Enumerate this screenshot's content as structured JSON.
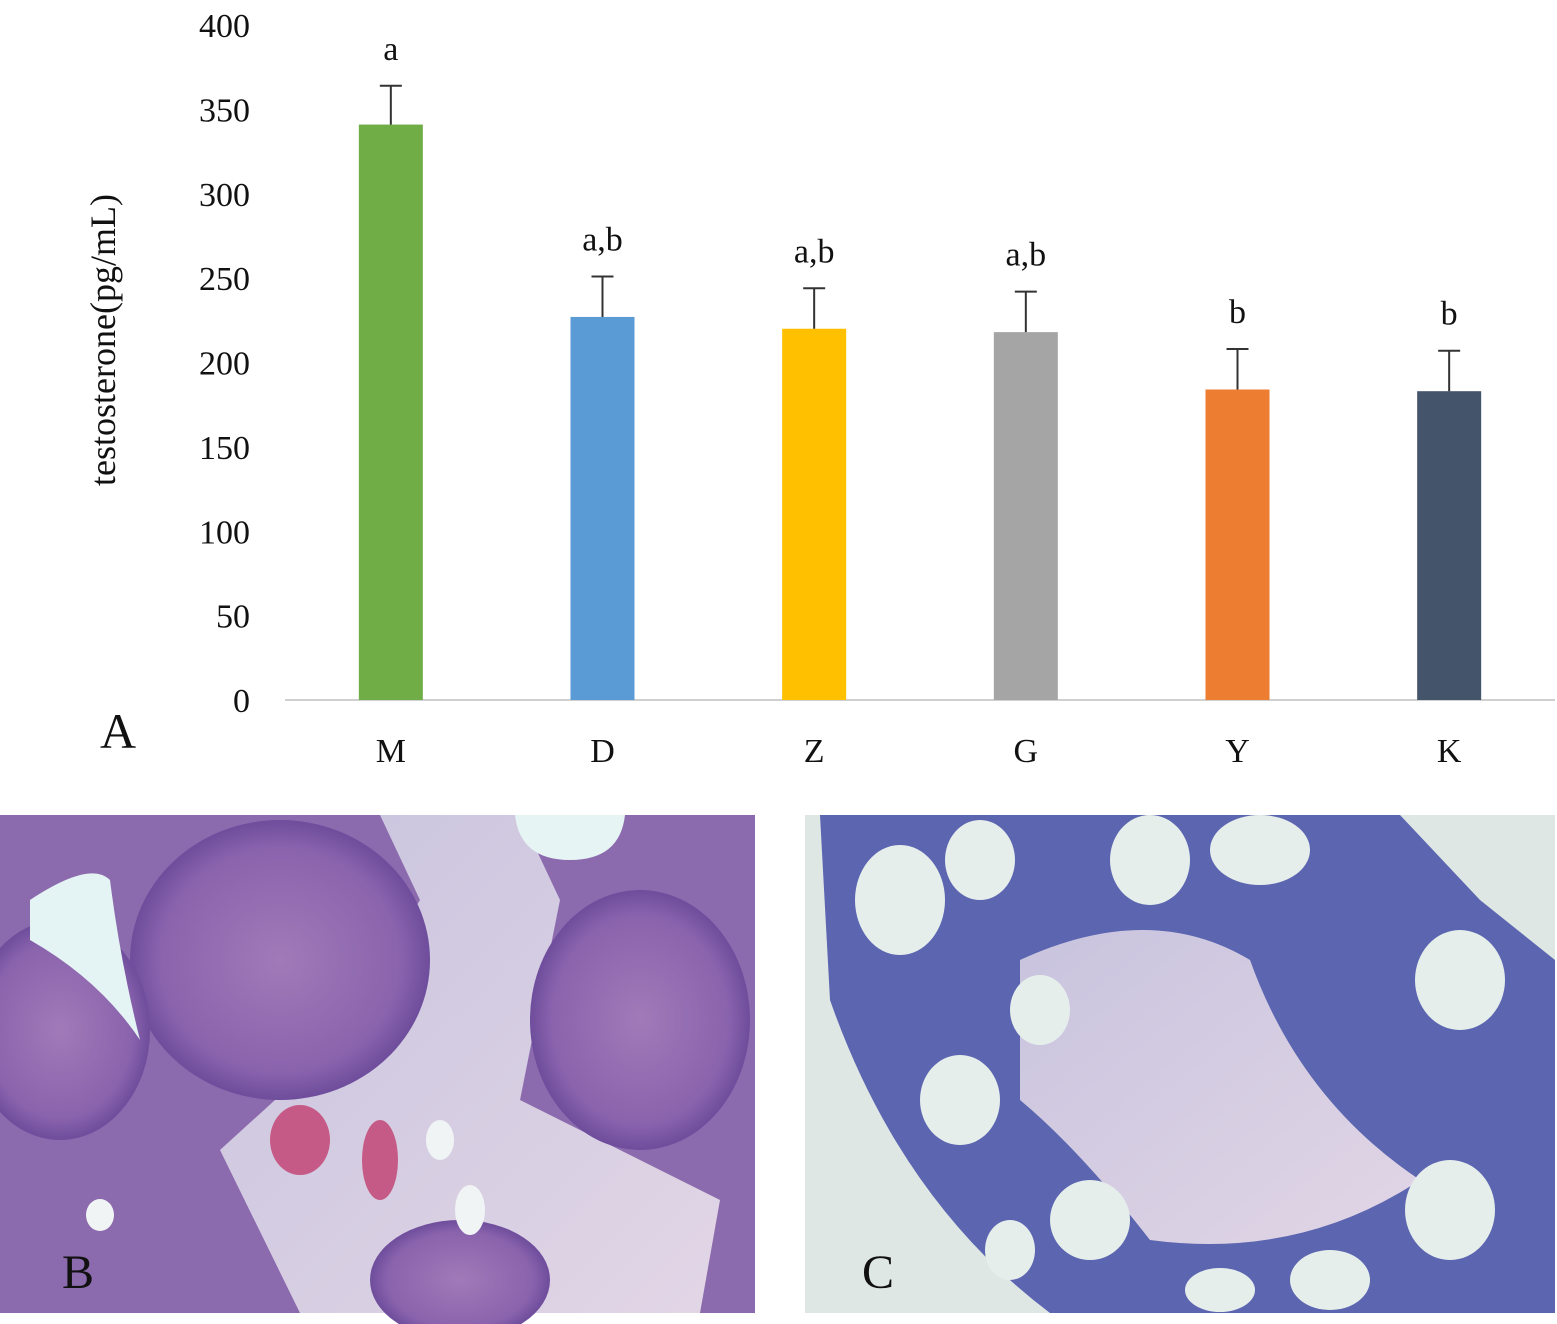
{
  "chart_data": {
    "type": "bar",
    "y_label": "testosterone(pg/mL)",
    "categories": [
      "M",
      "D",
      "Z",
      "G",
      "Y",
      "K"
    ],
    "values": [
      341,
      227,
      220,
      218,
      184,
      183
    ],
    "errors": [
      23,
      24,
      24,
      24,
      24,
      24
    ],
    "colors": [
      "#70ad47",
      "#5b9bd5",
      "#ffc000",
      "#a5a5a5",
      "#ed7d31",
      "#44546a"
    ],
    "annotations": [
      "a",
      "a,b",
      "a,b",
      "a,b",
      "b",
      "b"
    ],
    "ylim": [
      0,
      400
    ],
    "yticks": [
      0,
      50,
      100,
      150,
      200,
      250,
      300,
      350,
      400
    ],
    "grid": false
  },
  "panel_labels": [
    "A",
    "B",
    "C"
  ]
}
